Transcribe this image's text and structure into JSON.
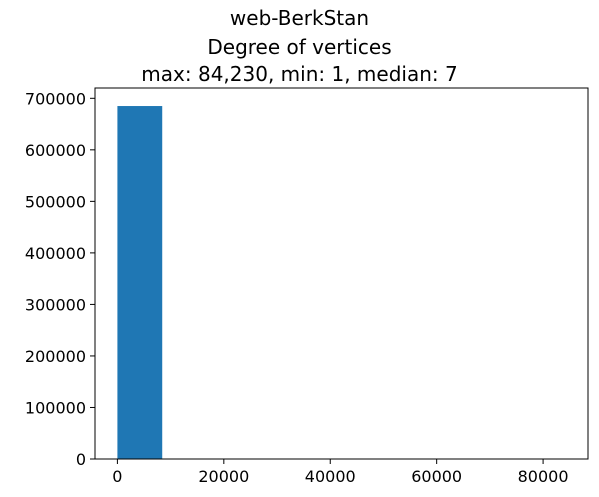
{
  "title_lines": [
    "web-BerkStan",
    "Degree of vertices",
    "max: 84,230, min: 1, median: 7"
  ],
  "colors": {
    "bar": "#1f77b4",
    "axis": "#000000",
    "background": "#ffffff"
  },
  "chart_data": {
    "type": "bar",
    "title": "web-BerkStan\nDegree of vertices\nmax: 84,230, min: 1, median: 7",
    "xlabel": "",
    "ylabel": "",
    "grid": false,
    "bins": [
      {
        "x0": 1,
        "x1": 8424,
        "count": 685000
      },
      {
        "x0": 8424,
        "x1": 16847,
        "count": 0
      },
      {
        "x0": 16847,
        "x1": 25270,
        "count": 0
      },
      {
        "x0": 25270,
        "x1": 33693,
        "count": 0
      },
      {
        "x0": 33693,
        "x1": 42116,
        "count": 0
      },
      {
        "x0": 42116,
        "x1": 50538,
        "count": 0
      },
      {
        "x0": 50538,
        "x1": 58961,
        "count": 0
      },
      {
        "x0": 58961,
        "x1": 67384,
        "count": 0
      },
      {
        "x0": 67384,
        "x1": 75807,
        "count": 0
      },
      {
        "x0": 75807,
        "x1": 84230,
        "count": 0
      }
    ],
    "xlim": [
      -4210,
      88440
    ],
    "ylim": [
      0,
      720000
    ],
    "xticks": [
      0,
      20000,
      40000,
      60000,
      80000
    ],
    "xtick_labels": [
      "0",
      "20000",
      "40000",
      "60000",
      "80000"
    ],
    "yticks": [
      0,
      100000,
      200000,
      300000,
      400000,
      500000,
      600000,
      700000
    ],
    "ytick_labels": [
      "0",
      "100000",
      "200000",
      "300000",
      "400000",
      "500000",
      "600000",
      "700000"
    ]
  }
}
